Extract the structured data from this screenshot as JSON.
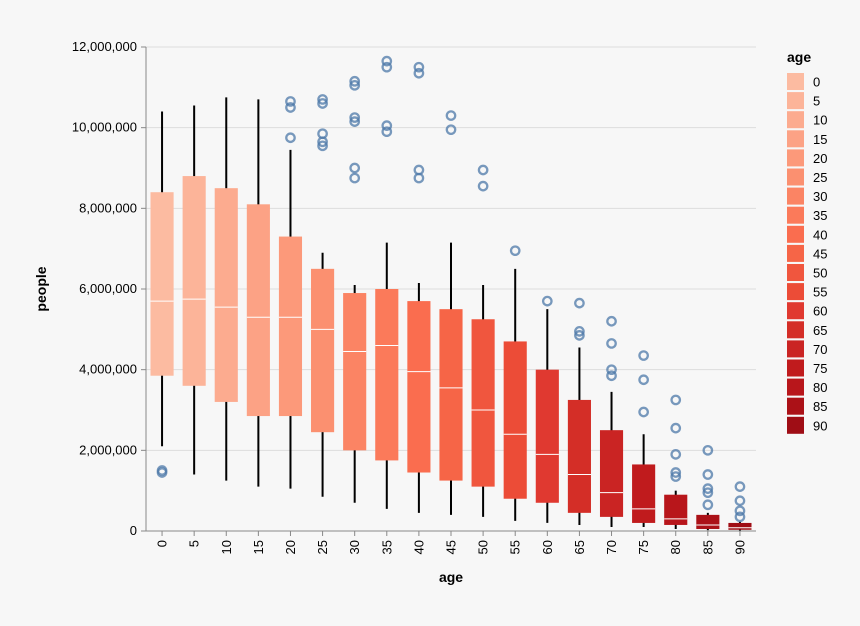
{
  "chart_data": {
    "type": "boxplot",
    "xlabel": "age",
    "ylabel": "people",
    "ylim": [
      0,
      12000000
    ],
    "yticks": [
      0,
      2000000,
      4000000,
      6000000,
      8000000,
      10000000,
      12000000
    ],
    "ytick_labels": [
      "0",
      "2,000,000",
      "4,000,000",
      "6,000,000",
      "8,000,000",
      "10,000,000",
      "12,000,000"
    ],
    "legend": {
      "title": "age",
      "position": "right",
      "entries": [
        "0",
        "5",
        "10",
        "15",
        "20",
        "25",
        "30",
        "35",
        "40",
        "45",
        "50",
        "55",
        "60",
        "65",
        "70",
        "75",
        "80",
        "85",
        "90"
      ],
      "colors": [
        "#fcbba1",
        "#fcb499",
        "#fcab8f",
        "#fca285",
        "#fc997a",
        "#fb9070",
        "#fb8464",
        "#fb7a5a",
        "#fa6d4f",
        "#f66547",
        "#f0563e",
        "#ec4c37",
        "#e03930",
        "#d42e27",
        "#ca2423",
        "#c01b1d",
        "#b8161b",
        "#ab1117",
        "#9f0d15"
      ]
    },
    "outlier_color": "#4c78a8",
    "median_color": "#ffffff",
    "whisker_color": "#000000",
    "series": [
      {
        "category": "0",
        "min": 2100000,
        "q1": 3850000,
        "median": 5700000,
        "q3": 8400000,
        "max": 10400000,
        "outliers": [
          1450000,
          1500000
        ]
      },
      {
        "category": "5",
        "min": 1400000,
        "q1": 3600000,
        "median": 5750000,
        "q3": 8800000,
        "max": 10550000,
        "outliers": []
      },
      {
        "category": "10",
        "min": 1250000,
        "q1": 3200000,
        "median": 5550000,
        "q3": 8500000,
        "max": 10750000,
        "outliers": []
      },
      {
        "category": "15",
        "min": 1100000,
        "q1": 2850000,
        "median": 5300000,
        "q3": 8100000,
        "max": 10700000,
        "outliers": []
      },
      {
        "category": "20",
        "min": 1050000,
        "q1": 2850000,
        "median": 5300000,
        "q3": 7300000,
        "max": 9450000,
        "outliers": [
          9750000,
          10500000,
          10650000
        ]
      },
      {
        "category": "25",
        "min": 850000,
        "q1": 2450000,
        "median": 5000000,
        "q3": 6500000,
        "max": 6900000,
        "outliers": [
          9550000,
          9650000,
          9850000,
          10600000,
          10700000
        ]
      },
      {
        "category": "30",
        "min": 700000,
        "q1": 2000000,
        "median": 4450000,
        "q3": 5900000,
        "max": 6100000,
        "outliers": [
          8750000,
          9000000,
          10150000,
          10250000,
          11050000,
          11150000
        ]
      },
      {
        "category": "35",
        "min": 550000,
        "q1": 1750000,
        "median": 4600000,
        "q3": 6000000,
        "max": 7150000,
        "outliers": [
          9900000,
          10050000,
          11500000,
          11650000
        ]
      },
      {
        "category": "40",
        "min": 450000,
        "q1": 1450000,
        "median": 3950000,
        "q3": 5700000,
        "max": 6150000,
        "outliers": [
          8750000,
          8950000,
          11350000,
          11500000
        ]
      },
      {
        "category": "45",
        "min": 400000,
        "q1": 1250000,
        "median": 3550000,
        "q3": 5500000,
        "max": 7150000,
        "outliers": [
          9950000,
          10300000
        ]
      },
      {
        "category": "50",
        "min": 350000,
        "q1": 1100000,
        "median": 3000000,
        "q3": 5250000,
        "max": 6100000,
        "outliers": [
          8550000,
          8950000
        ]
      },
      {
        "category": "55",
        "min": 250000,
        "q1": 800000,
        "median": 2400000,
        "q3": 4700000,
        "max": 6500000,
        "outliers": [
          6950000
        ]
      },
      {
        "category": "60",
        "min": 200000,
        "q1": 700000,
        "median": 1900000,
        "q3": 4000000,
        "max": 5500000,
        "outliers": [
          5700000
        ]
      },
      {
        "category": "65",
        "min": 150000,
        "q1": 450000,
        "median": 1400000,
        "q3": 3250000,
        "max": 4550000,
        "outliers": [
          4850000,
          4950000,
          5650000
        ]
      },
      {
        "category": "70",
        "min": 100000,
        "q1": 350000,
        "median": 950000,
        "q3": 2500000,
        "max": 3450000,
        "outliers": [
          3850000,
          4000000,
          4650000,
          5200000
        ]
      },
      {
        "category": "75",
        "min": 100000,
        "q1": 200000,
        "median": 550000,
        "q3": 1650000,
        "max": 2400000,
        "outliers": [
          2950000,
          3750000,
          4350000
        ]
      },
      {
        "category": "80",
        "min": 50000,
        "q1": 150000,
        "median": 300000,
        "q3": 900000,
        "max": 1000000,
        "outliers": [
          1350000,
          1450000,
          1900000,
          2550000,
          3250000
        ]
      },
      {
        "category": "85",
        "min": 20000,
        "q1": 50000,
        "median": 150000,
        "q3": 400000,
        "max": 450000,
        "outliers": [
          650000,
          950000,
          1050000,
          1400000,
          2000000
        ]
      },
      {
        "category": "90",
        "min": 10000,
        "q1": 30000,
        "median": 80000,
        "q3": 200000,
        "max": 230000,
        "outliers": [
          350000,
          500000,
          750000,
          1100000
        ]
      }
    ]
  }
}
